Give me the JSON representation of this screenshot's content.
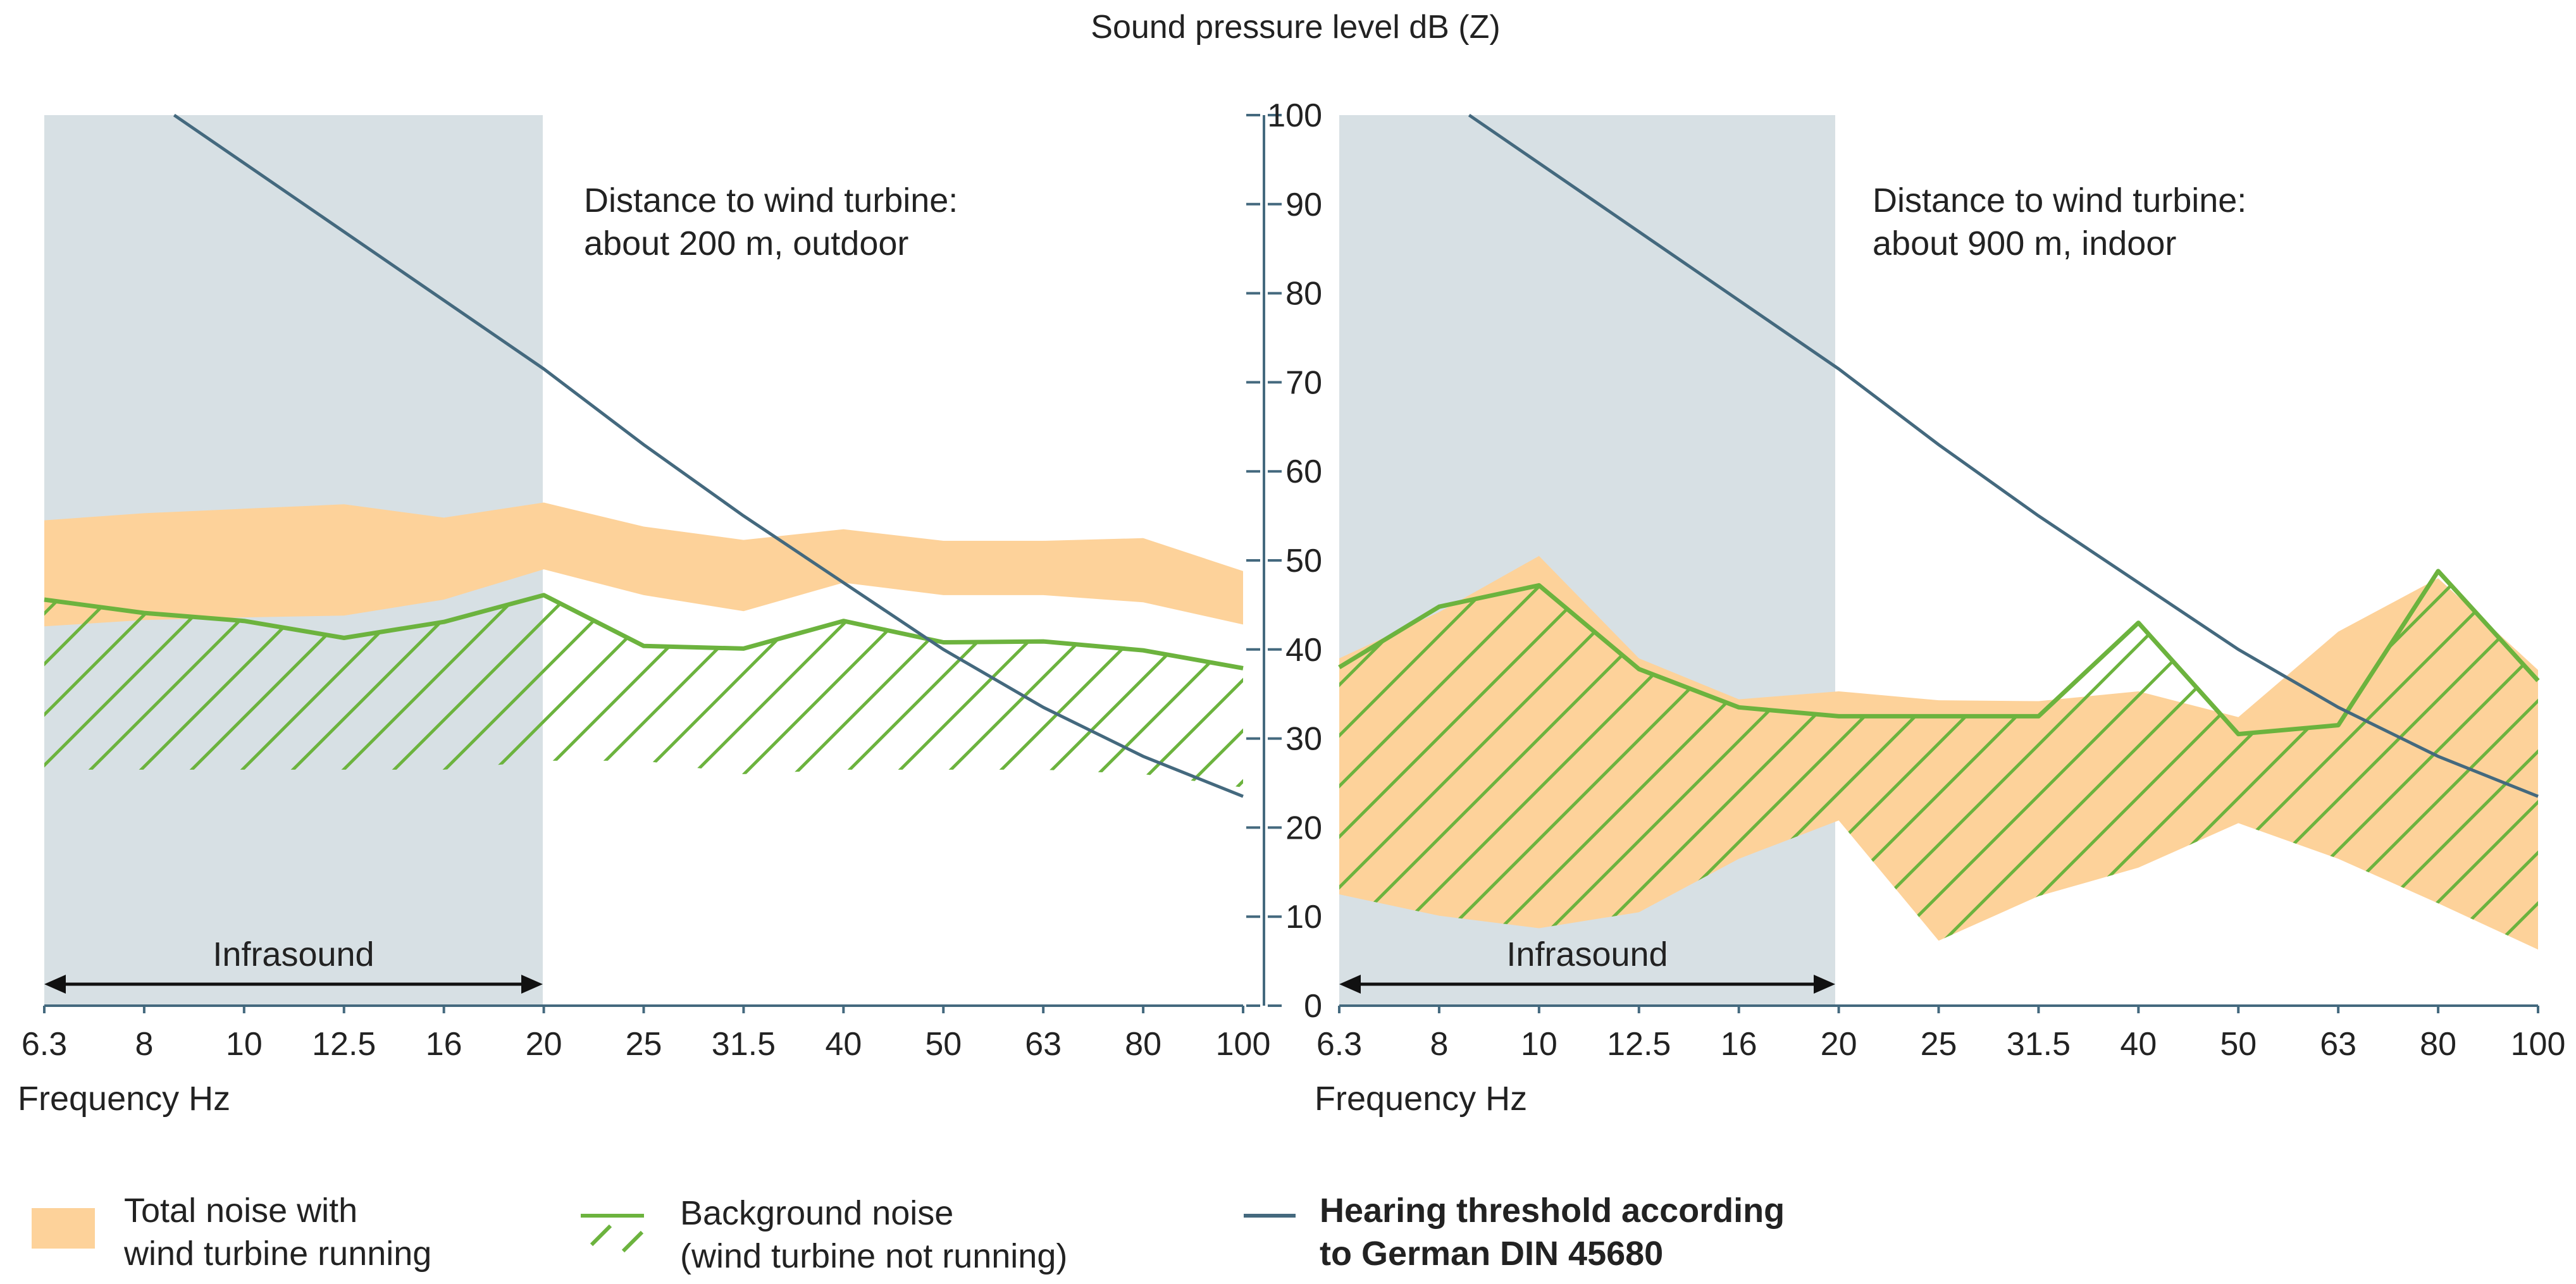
{
  "chart_data": {
    "type": "area",
    "y_axis_title": "Sound pressure level dB (Z)",
    "ylim": [
      0,
      100
    ],
    "y_ticks": [
      "0",
      "10",
      "20",
      "30",
      "40",
      "50",
      "60",
      "70",
      "80",
      "90",
      "100"
    ],
    "x_categories": [
      "6.3",
      "8",
      "10",
      "12.5",
      "16",
      "20",
      "25",
      "31.5",
      "40",
      "50",
      "63",
      "80",
      "100"
    ],
    "x_axis_label": "Frequency Hz",
    "colors": {
      "total_noise": "#fdd29a",
      "background_noise": "#6cb33e",
      "hearing_threshold": "#44697e",
      "infrasound_region": "#d7e0e4",
      "axis": "#44697e"
    },
    "panels": [
      {
        "annotation_line1": "Distance to wind turbine:",
        "annotation_line2": "about 200 m, outdoor",
        "infrasound_label": "Infrasound",
        "infrasound_range": [
          "6.3",
          "20"
        ],
        "total_noise_upper": [
          54.5,
          55.3,
          55.8,
          56.3,
          54.8,
          56.5,
          53.8,
          52.3,
          53.5,
          52.2,
          52.2,
          52.5,
          48.8
        ],
        "total_noise_lower": [
          42.6,
          43.3,
          43.6,
          43.8,
          45.6,
          49.0,
          46.1,
          44.3,
          47.5,
          46.1,
          46.1,
          45.3,
          42.8
        ],
        "background_noise_upper": [
          45.6,
          44.1,
          43.2,
          41.3,
          43.1,
          46.1,
          40.4,
          40.1,
          43.2,
          40.8,
          40.9,
          39.9,
          37.9
        ],
        "background_noise_lower": [
          26.5,
          26.5,
          26.5,
          26.5,
          26.5,
          27.5,
          27.5,
          26.0,
          26.5,
          26.5,
          26.5,
          26.0,
          24.5
        ],
        "hearing_threshold_x": [
          8.6,
          20,
          25,
          31.5,
          40,
          50,
          63,
          80,
          100
        ],
        "hearing_threshold": [
          100,
          71.5,
          63,
          55,
          47.5,
          40,
          33.5,
          28,
          23.5
        ]
      },
      {
        "annotation_line1": "Distance to wind turbine:",
        "annotation_line2": "about 900 m, indoor",
        "infrasound_label": "Infrasound",
        "infrasound_range": [
          "6.3",
          "20"
        ],
        "total_noise_upper": [
          39.0,
          44.2,
          50.5,
          39.0,
          34.4,
          35.3,
          34.3,
          34.2,
          35.3,
          32.4,
          42.0,
          48.0,
          37.7
        ],
        "total_noise_lower": [
          12.5,
          10.1,
          8.7,
          10.5,
          16.5,
          20.8,
          7.3,
          12.3,
          15.5,
          20.5,
          16.5,
          11.5,
          6.3
        ],
        "background_noise_upper": [
          38.0,
          44.8,
          47.2,
          37.8,
          33.5,
          32.5,
          32.5,
          32.5,
          43.0,
          30.5,
          31.5,
          48.8,
          36.5
        ],
        "background_noise_lower": [
          12.5,
          10.1,
          8.7,
          10.5,
          16.5,
          20.8,
          7.3,
          12.3,
          15.5,
          20.5,
          16.5,
          11.5,
          6.3
        ],
        "hearing_threshold_x": [
          8.6,
          20,
          25,
          31.5,
          40,
          50,
          63,
          80,
          100
        ],
        "hearing_threshold": [
          100,
          71.5,
          63,
          55,
          47.5,
          40,
          33.5,
          28,
          23.5
        ]
      }
    ],
    "legend": {
      "total_noise_line1": "Total noise with",
      "total_noise_line2": "wind turbine running",
      "background_noise_line1": "Background noise",
      "background_noise_line2": "(wind turbine not running)",
      "hearing_threshold_line1": "Hearing threshold according",
      "hearing_threshold_line2": "to German DIN 45680"
    }
  }
}
